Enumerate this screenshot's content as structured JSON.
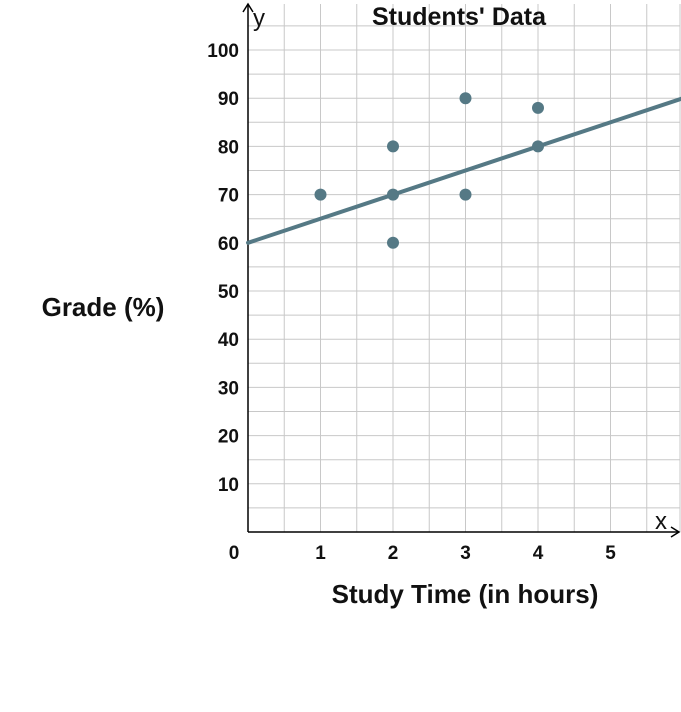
{
  "chart_data": {
    "type": "scatter",
    "title": "Students' Data",
    "xlabel": "Study Time (in hours)",
    "ylabel": "Grade (%)",
    "x_axis_letter": "x",
    "y_axis_letter": "y",
    "origin_label": "0",
    "xlim": [
      0,
      6
    ],
    "ylim": [
      0,
      110
    ],
    "x_ticks": [
      1,
      2,
      3,
      4,
      5
    ],
    "y_ticks": [
      10,
      20,
      30,
      40,
      50,
      60,
      70,
      80,
      90,
      100
    ],
    "grid": true,
    "points": [
      {
        "x": 1,
        "y": 70
      },
      {
        "x": 2,
        "y": 80
      },
      {
        "x": 2,
        "y": 70
      },
      {
        "x": 2,
        "y": 60
      },
      {
        "x": 3,
        "y": 90
      },
      {
        "x": 3,
        "y": 70
      },
      {
        "x": 4,
        "y": 88
      },
      {
        "x": 4,
        "y": 80
      }
    ],
    "trend_line": {
      "slope": 5,
      "intercept": 60
    },
    "colors": {
      "marker": "#557985",
      "line": "#557985",
      "grid": "#c8c8c8",
      "axis": "#000000"
    }
  }
}
